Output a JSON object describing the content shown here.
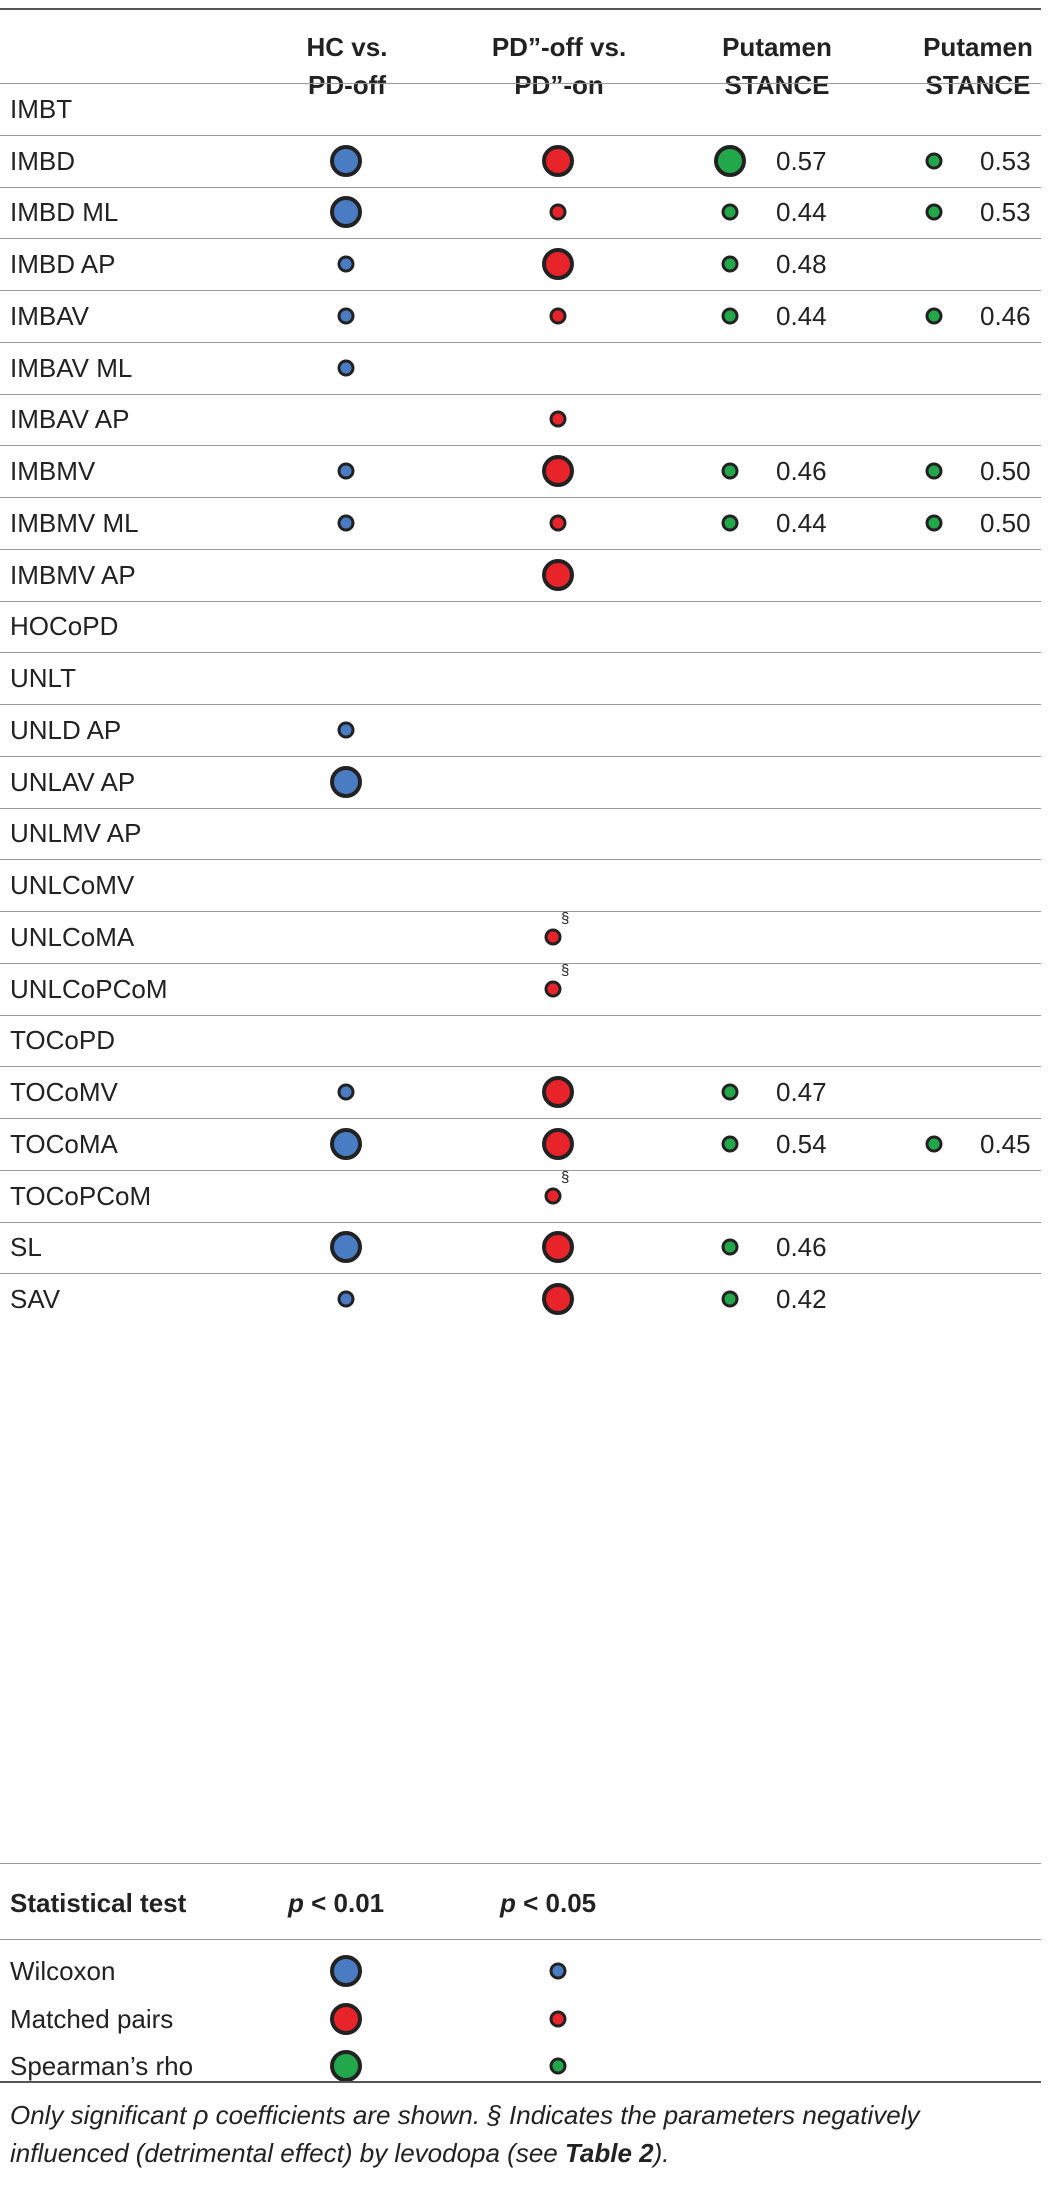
{
  "headers": [
    {
      "label": "HC vs.\nPD-off"
    },
    {
      "label": "PD”-off vs.\nPD”-on"
    },
    {
      "label": "Putamen\nSTANCE"
    },
    {
      "label": "Putamen\nSTANCE"
    }
  ],
  "colors": {
    "blue": "#4a7cc4",
    "red": "#e8232a",
    "green": "#22a84a",
    "border": "#222222"
  },
  "rows": [
    {
      "label": "IMBT",
      "hc": null,
      "pd": null,
      "pa": null,
      "pa_val": "",
      "pb": null,
      "pb_val": ""
    },
    {
      "label": "IMBD",
      "hc": "big",
      "pd": "big",
      "pa": "big",
      "pa_val": "0.57",
      "pb": "small",
      "pb_val": "0.53"
    },
    {
      "label": "IMBD ML",
      "hc": "big",
      "pd": "small",
      "pa": "small",
      "pa_val": "0.44",
      "pb": "small",
      "pb_val": "0.53"
    },
    {
      "label": "IMBD AP",
      "hc": "small",
      "pd": "big",
      "pa": "small",
      "pa_val": "0.48",
      "pb": null,
      "pb_val": ""
    },
    {
      "label": "IMBAV",
      "hc": "small",
      "pd": "small",
      "pa": "small",
      "pa_val": "0.44",
      "pb": "small",
      "pb_val": "0.46"
    },
    {
      "label": "IMBAV ML",
      "hc": "small",
      "pd": null,
      "pa": null,
      "pa_val": "",
      "pb": null,
      "pb_val": ""
    },
    {
      "label": "IMBAV AP",
      "hc": null,
      "pd": "small",
      "pa": null,
      "pa_val": "",
      "pb": null,
      "pb_val": ""
    },
    {
      "label": "IMBMV",
      "hc": "small",
      "pd": "big",
      "pa": "small",
      "pa_val": "0.46",
      "pb": "small",
      "pb_val": "0.50"
    },
    {
      "label": "IMBMV ML",
      "hc": "small",
      "pd": "small",
      "pa": "small",
      "pa_val": "0.44",
      "pb": "small",
      "pb_val": "0.50"
    },
    {
      "label": "IMBMV AP",
      "hc": null,
      "pd": "big",
      "pa": null,
      "pa_val": "",
      "pb": null,
      "pb_val": ""
    },
    {
      "label": "HOCoPD",
      "hc": null,
      "pd": null,
      "pa": null,
      "pa_val": "",
      "pb": null,
      "pb_val": ""
    },
    {
      "label": "UNLT",
      "hc": null,
      "pd": null,
      "pa": null,
      "pa_val": "",
      "pb": null,
      "pb_val": ""
    },
    {
      "label": "UNLD AP",
      "hc": "small",
      "pd": null,
      "pa": null,
      "pa_val": "",
      "pb": null,
      "pb_val": ""
    },
    {
      "label": "UNLAV AP",
      "hc": "big",
      "pd": null,
      "pa": null,
      "pa_val": "",
      "pb": null,
      "pb_val": ""
    },
    {
      "label": "UNLMV AP",
      "hc": null,
      "pd": null,
      "pa": null,
      "pa_val": "",
      "pb": null,
      "pb_val": ""
    },
    {
      "label": "UNLCoMV",
      "hc": null,
      "pd": null,
      "pa": null,
      "pa_val": "",
      "pb": null,
      "pb_val": ""
    },
    {
      "label": "UNLCoMA",
      "hc": null,
      "pd": "small",
      "pd_mark": "§",
      "pa": null,
      "pa_val": "",
      "pb": null,
      "pb_val": ""
    },
    {
      "label": "UNLCoPCoM",
      "hc": null,
      "pd": "small",
      "pd_mark": "§",
      "pa": null,
      "pa_val": "",
      "pb": null,
      "pb_val": ""
    },
    {
      "label": "TOCoPD",
      "hc": null,
      "pd": null,
      "pa": null,
      "pa_val": "",
      "pb": null,
      "pb_val": ""
    },
    {
      "label": "TOCoMV",
      "hc": "small",
      "pd": "big",
      "pa": "small",
      "pa_val": "0.47",
      "pb": null,
      "pb_val": ""
    },
    {
      "label": "TOCoMA",
      "hc": "big",
      "pd": "big",
      "pa": "small",
      "pa_val": "0.54",
      "pb": "small",
      "pb_val": "0.45"
    },
    {
      "label": "TOCoPCoM",
      "hc": null,
      "pd": "small",
      "pd_mark": "§",
      "pa": null,
      "pa_val": "",
      "pb": null,
      "pb_val": ""
    },
    {
      "label": "SL",
      "hc": "big",
      "pd": "big",
      "pa": "small",
      "pa_val": "0.46",
      "pb": null,
      "pb_val": ""
    },
    {
      "label": "SAV",
      "hc": "small",
      "pd": "big",
      "pa": "small",
      "pa_val": "0.42",
      "pb": null,
      "pb_val": ""
    }
  ],
  "stat_header": {
    "label": "Statistical test",
    "p1_sym": "p",
    "p1_rest": " < 0.01",
    "p2_sym": "p",
    "p2_rest": " < 0.05"
  },
  "legend": [
    {
      "label": "Wilcoxon",
      "color": "blue"
    },
    {
      "label": "Matched pairs",
      "color": "red"
    },
    {
      "label": "Spearman’s rho",
      "color": "green"
    }
  ],
  "footnote": {
    "part1": "Only significant ρ coefficients are shown. § Indicates the parameters negatively influenced (detrimental effect) by levodopa (see ",
    "bold": "Table 2",
    "part2": ")."
  }
}
